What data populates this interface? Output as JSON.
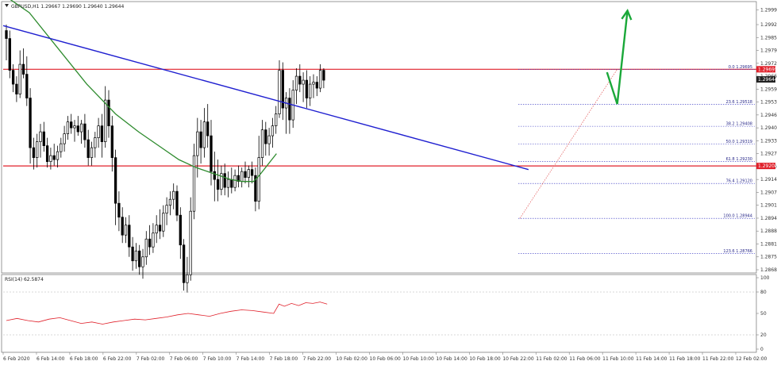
{
  "chart_data": {
    "type": "candlestick",
    "symbol_header": "GBPUSD,H1  1.29667 1.29690 1.29640 1.29644",
    "ylim": [
      1.28685,
      1.3002
    ],
    "y_ticks": [
      "1.29995",
      "1.29920",
      "1.29855",
      "1.29790",
      "1.29725",
      "1.29660",
      "1.29595",
      "1.29530",
      "1.29465",
      "1.29400",
      "1.29335",
      "1.29270",
      "1.29205",
      "1.29140",
      "1.29075",
      "1.29010",
      "1.28945",
      "1.28880",
      "1.28815",
      "1.28750",
      "1.28685"
    ],
    "x_labels": [
      "6 Feb 2020",
      "6 Feb 14:00",
      "6 Feb 18:00",
      "6 Feb 22:00",
      "7 Feb 02:00",
      "7 Feb 06:00",
      "7 Feb 10:00",
      "7 Feb 14:00",
      "7 Feb 18:00",
      "7 Feb 22:00",
      "10 Feb 02:00",
      "10 Feb 06:00",
      "10 Feb 10:00",
      "10 Feb 14:00",
      "10 Feb 18:00",
      "10 Feb 22:00",
      "11 Feb 02:00",
      "11 Feb 06:00",
      "11 Feb 10:00",
      "11 Feb 14:00",
      "11 Feb 18:00",
      "11 Feb 22:00",
      "12 Feb 02:00"
    ],
    "price_badges": [
      {
        "value": "1.29695",
        "color": "#e0202a"
      },
      {
        "value": "1.29644",
        "color": "#222222"
      },
      {
        "value": "1.29208",
        "color": "#e0202a"
      }
    ],
    "candles": [
      {
        "o": 1.2989,
        "h": 1.2992,
        "l": 1.2974,
        "c": 1.2985
      },
      {
        "o": 1.2985,
        "h": 1.2989,
        "l": 1.2965,
        "c": 1.2969
      },
      {
        "o": 1.2969,
        "h": 1.2972,
        "l": 1.2958,
        "c": 1.2962
      },
      {
        "o": 1.2962,
        "h": 1.2966,
        "l": 1.2953,
        "c": 1.2957
      },
      {
        "o": 1.2957,
        "h": 1.2979,
        "l": 1.2955,
        "c": 1.2972
      },
      {
        "o": 1.2972,
        "h": 1.298,
        "l": 1.2965,
        "c": 1.2967
      },
      {
        "o": 1.2967,
        "h": 1.2976,
        "l": 1.2951,
        "c": 1.2955
      },
      {
        "o": 1.2955,
        "h": 1.296,
        "l": 1.2922,
        "c": 1.293
      },
      {
        "o": 1.293,
        "h": 1.2935,
        "l": 1.2919,
        "c": 1.2925
      },
      {
        "o": 1.2925,
        "h": 1.2937,
        "l": 1.292,
        "c": 1.2933
      },
      {
        "o": 1.2933,
        "h": 1.2942,
        "l": 1.2925,
        "c": 1.2938
      },
      {
        "o": 1.2938,
        "h": 1.2943,
        "l": 1.2928,
        "c": 1.2931
      },
      {
        "o": 1.2931,
        "h": 1.2935,
        "l": 1.292,
        "c": 1.2923
      },
      {
        "o": 1.2923,
        "h": 1.293,
        "l": 1.2919,
        "c": 1.2926
      },
      {
        "o": 1.2926,
        "h": 1.2932,
        "l": 1.2921,
        "c": 1.2924
      },
      {
        "o": 1.2924,
        "h": 1.2931,
        "l": 1.292,
        "c": 1.2928
      },
      {
        "o": 1.2928,
        "h": 1.2935,
        "l": 1.2925,
        "c": 1.2932
      },
      {
        "o": 1.2932,
        "h": 1.2941,
        "l": 1.2928,
        "c": 1.2937
      },
      {
        "o": 1.2937,
        "h": 1.2946,
        "l": 1.2934,
        "c": 1.2943
      },
      {
        "o": 1.2943,
        "h": 1.2947,
        "l": 1.2937,
        "c": 1.294
      },
      {
        "o": 1.294,
        "h": 1.2944,
        "l": 1.2933,
        "c": 1.2941
      },
      {
        "o": 1.2941,
        "h": 1.2946,
        "l": 1.2936,
        "c": 1.2938
      },
      {
        "o": 1.2938,
        "h": 1.2944,
        "l": 1.2932,
        "c": 1.2942
      },
      {
        "o": 1.2942,
        "h": 1.2947,
        "l": 1.293,
        "c": 1.2934
      },
      {
        "o": 1.2934,
        "h": 1.2939,
        "l": 1.2921,
        "c": 1.2925
      },
      {
        "o": 1.2925,
        "h": 1.2933,
        "l": 1.2921,
        "c": 1.293
      },
      {
        "o": 1.293,
        "h": 1.2938,
        "l": 1.2925,
        "c": 1.2935
      },
      {
        "o": 1.2935,
        "h": 1.2945,
        "l": 1.293,
        "c": 1.2941
      },
      {
        "o": 1.2941,
        "h": 1.2947,
        "l": 1.2925,
        "c": 1.2933
      },
      {
        "o": 1.2933,
        "h": 1.2961,
        "l": 1.293,
        "c": 1.2954
      },
      {
        "o": 1.2954,
        "h": 1.2959,
        "l": 1.2935,
        "c": 1.2941
      },
      {
        "o": 1.2941,
        "h": 1.2946,
        "l": 1.2918,
        "c": 1.2925
      },
      {
        "o": 1.2925,
        "h": 1.2929,
        "l": 1.2891,
        "c": 1.2902
      },
      {
        "o": 1.2902,
        "h": 1.2908,
        "l": 1.2888,
        "c": 1.2895
      },
      {
        "o": 1.2895,
        "h": 1.29,
        "l": 1.2882,
        "c": 1.2886
      },
      {
        "o": 1.2886,
        "h": 1.2895,
        "l": 1.2882,
        "c": 1.2891
      },
      {
        "o": 1.2891,
        "h": 1.2896,
        "l": 1.2875,
        "c": 1.288
      },
      {
        "o": 1.288,
        "h": 1.2885,
        "l": 1.2868,
        "c": 1.2873
      },
      {
        "o": 1.2873,
        "h": 1.2882,
        "l": 1.2869,
        "c": 1.2878
      },
      {
        "o": 1.2878,
        "h": 1.2881,
        "l": 1.2866,
        "c": 1.287
      },
      {
        "o": 1.287,
        "h": 1.2879,
        "l": 1.2864,
        "c": 1.2875
      },
      {
        "o": 1.2875,
        "h": 1.2888,
        "l": 1.2871,
        "c": 1.2884
      },
      {
        "o": 1.2884,
        "h": 1.2891,
        "l": 1.2876,
        "c": 1.288
      },
      {
        "o": 1.288,
        "h": 1.2892,
        "l": 1.2877,
        "c": 1.2887
      },
      {
        "o": 1.2887,
        "h": 1.2896,
        "l": 1.2882,
        "c": 1.2891
      },
      {
        "o": 1.2891,
        "h": 1.2899,
        "l": 1.2884,
        "c": 1.2888
      },
      {
        "o": 1.2888,
        "h": 1.2901,
        "l": 1.2885,
        "c": 1.2897
      },
      {
        "o": 1.2897,
        "h": 1.2905,
        "l": 1.2891,
        "c": 1.2901
      },
      {
        "o": 1.2901,
        "h": 1.2908,
        "l": 1.2896,
        "c": 1.2904
      },
      {
        "o": 1.2904,
        "h": 1.2912,
        "l": 1.2899,
        "c": 1.2908
      },
      {
        "o": 1.2908,
        "h": 1.2911,
        "l": 1.2893,
        "c": 1.2896
      },
      {
        "o": 1.2896,
        "h": 1.29,
        "l": 1.2874,
        "c": 1.2881
      },
      {
        "o": 1.2881,
        "h": 1.2884,
        "l": 1.2858,
        "c": 1.2862
      },
      {
        "o": 1.2862,
        "h": 1.2875,
        "l": 1.2857,
        "c": 1.2866
      },
      {
        "o": 1.2866,
        "h": 1.2905,
        "l": 1.2863,
        "c": 1.2898
      },
      {
        "o": 1.2898,
        "h": 1.2932,
        "l": 1.2894,
        "c": 1.2926
      },
      {
        "o": 1.2926,
        "h": 1.2945,
        "l": 1.2915,
        "c": 1.2938
      },
      {
        "o": 1.2938,
        "h": 1.2944,
        "l": 1.2922,
        "c": 1.293
      },
      {
        "o": 1.293,
        "h": 1.295,
        "l": 1.2925,
        "c": 1.2943
      },
      {
        "o": 1.2943,
        "h": 1.2952,
        "l": 1.293,
        "c": 1.2936
      },
      {
        "o": 1.2936,
        "h": 1.2944,
        "l": 1.2911,
        "c": 1.2918
      },
      {
        "o": 1.2918,
        "h": 1.2928,
        "l": 1.2903,
        "c": 1.2914
      },
      {
        "o": 1.2914,
        "h": 1.2924,
        "l": 1.2903,
        "c": 1.2909
      },
      {
        "o": 1.2909,
        "h": 1.2921,
        "l": 1.2906,
        "c": 1.2917
      },
      {
        "o": 1.2917,
        "h": 1.2922,
        "l": 1.2906,
        "c": 1.291
      },
      {
        "o": 1.291,
        "h": 1.2918,
        "l": 1.2905,
        "c": 1.2914
      },
      {
        "o": 1.2914,
        "h": 1.292,
        "l": 1.2907,
        "c": 1.291
      },
      {
        "o": 1.291,
        "h": 1.2919,
        "l": 1.2908,
        "c": 1.2916
      },
      {
        "o": 1.2916,
        "h": 1.2921,
        "l": 1.291,
        "c": 1.2913
      },
      {
        "o": 1.2913,
        "h": 1.292,
        "l": 1.291,
        "c": 1.2918
      },
      {
        "o": 1.2918,
        "h": 1.2923,
        "l": 1.2912,
        "c": 1.2915
      },
      {
        "o": 1.2915,
        "h": 1.2921,
        "l": 1.291,
        "c": 1.2919
      },
      {
        "o": 1.2919,
        "h": 1.2923,
        "l": 1.2912,
        "c": 1.2916
      },
      {
        "o": 1.2916,
        "h": 1.292,
        "l": 1.2898,
        "c": 1.2903
      },
      {
        "o": 1.2903,
        "h": 1.2936,
        "l": 1.2899,
        "c": 1.2925
      },
      {
        "o": 1.2925,
        "h": 1.2944,
        "l": 1.2921,
        "c": 1.2939
      },
      {
        "o": 1.2939,
        "h": 1.2943,
        "l": 1.2926,
        "c": 1.2932
      },
      {
        "o": 1.2932,
        "h": 1.294,
        "l": 1.2926,
        "c": 1.2936
      },
      {
        "o": 1.2936,
        "h": 1.2945,
        "l": 1.293,
        "c": 1.2941
      },
      {
        "o": 1.2941,
        "h": 1.2951,
        "l": 1.2937,
        "c": 1.2947
      },
      {
        "o": 1.2947,
        "h": 1.2974,
        "l": 1.2945,
        "c": 1.2969
      },
      {
        "o": 1.2969,
        "h": 1.2973,
        "l": 1.2944,
        "c": 1.295
      },
      {
        "o": 1.295,
        "h": 1.2958,
        "l": 1.2937,
        "c": 1.2955
      },
      {
        "o": 1.2955,
        "h": 1.296,
        "l": 1.2937,
        "c": 1.2944
      },
      {
        "o": 1.2944,
        "h": 1.2964,
        "l": 1.294,
        "c": 1.2959
      },
      {
        "o": 1.2959,
        "h": 1.297,
        "l": 1.2952,
        "c": 1.2966
      },
      {
        "o": 1.2966,
        "h": 1.2972,
        "l": 1.2958,
        "c": 1.2962
      },
      {
        "o": 1.2962,
        "h": 1.2968,
        "l": 1.2953,
        "c": 1.2964
      },
      {
        "o": 1.2964,
        "h": 1.2969,
        "l": 1.295,
        "c": 1.2955
      },
      {
        "o": 1.2955,
        "h": 1.2966,
        "l": 1.2951,
        "c": 1.2962
      },
      {
        "o": 1.2962,
        "h": 1.2967,
        "l": 1.2955,
        "c": 1.2963
      },
      {
        "o": 1.2963,
        "h": 1.2966,
        "l": 1.2956,
        "c": 1.296
      },
      {
        "o": 1.296,
        "h": 1.2972,
        "l": 1.2958,
        "c": 1.2969
      },
      {
        "o": 1.2969,
        "h": 1.297,
        "l": 1.296,
        "c": 1.2964
      }
    ],
    "ema_green": [
      [
        0,
        1.3006
      ],
      [
        20,
        1.2998
      ],
      [
        45,
        1.298
      ],
      [
        70,
        1.2962
      ],
      [
        95,
        1.2947
      ],
      [
        115,
        1.2938
      ],
      [
        135,
        1.293
      ],
      [
        150,
        1.2924
      ],
      [
        165,
        1.292
      ],
      [
        180,
        1.2917
      ],
      [
        195,
        1.2914
      ],
      [
        205,
        1.2913
      ],
      [
        215,
        1.2913
      ],
      [
        220,
        1.2916
      ],
      [
        235,
        1.2927
      ]
    ],
    "ema_x_index_range": [
      0,
      240
    ],
    "trend_line_blue": [
      {
        "t": -2,
        "v": 1.29915
      },
      {
        "t": 153,
        "v": 1.2919
      }
    ],
    "resistance_levels": [
      1.29695,
      1.29208
    ],
    "fib_swing": {
      "low": 1.28944,
      "high": 1.29695,
      "start_index": 150,
      "end_index": 179
    },
    "fib_levels": [
      {
        "label": "0.0 1.29695",
        "value": 1.29695
      },
      {
        "label": "23.6 1.29518",
        "value": 1.29518
      },
      {
        "label": "38.2 1.29408",
        "value": 1.29408
      },
      {
        "label": "50.0 1.29319",
        "value": 1.29319
      },
      {
        "label": "61.8 1.29230",
        "value": 1.2923
      },
      {
        "label": "76.4 1.29120",
        "value": 1.2912
      },
      {
        "label": "100.0 1.28944",
        "value": 1.28944
      },
      {
        "label": "123.6 1.28766",
        "value": 1.28766
      }
    ],
    "projection_arrow": [
      {
        "t": 176,
        "v": 1.2968
      },
      {
        "t": 179,
        "v": 1.2952
      },
      {
        "t": 182,
        "v": 1.2999
      }
    ],
    "rsi": {
      "label": "RSI(14) 62.5874",
      "ylim": [
        0,
        100
      ],
      "levels": [
        100,
        80,
        50,
        20,
        0
      ],
      "points": [
        [
          0,
          40
        ],
        [
          6,
          43
        ],
        [
          12,
          40
        ],
        [
          18,
          38
        ],
        [
          24,
          42
        ],
        [
          30,
          44
        ],
        [
          36,
          40
        ],
        [
          42,
          36
        ],
        [
          48,
          38
        ],
        [
          54,
          35
        ],
        [
          60,
          38
        ],
        [
          66,
          40
        ],
        [
          72,
          42
        ],
        [
          78,
          41
        ],
        [
          84,
          43
        ],
        [
          90,
          45
        ],
        [
          96,
          48
        ],
        [
          102,
          50
        ],
        [
          108,
          48
        ],
        [
          114,
          46
        ],
        [
          120,
          50
        ],
        [
          126,
          53
        ],
        [
          132,
          55
        ],
        [
          138,
          54
        ],
        [
          144,
          52
        ],
        [
          150,
          50
        ],
        [
          153,
          63
        ],
        [
          156,
          60
        ],
        [
          160,
          64
        ],
        [
          164,
          61
        ],
        [
          168,
          65
        ],
        [
          172,
          64
        ],
        [
          176,
          66
        ],
        [
          180,
          63
        ]
      ]
    }
  }
}
